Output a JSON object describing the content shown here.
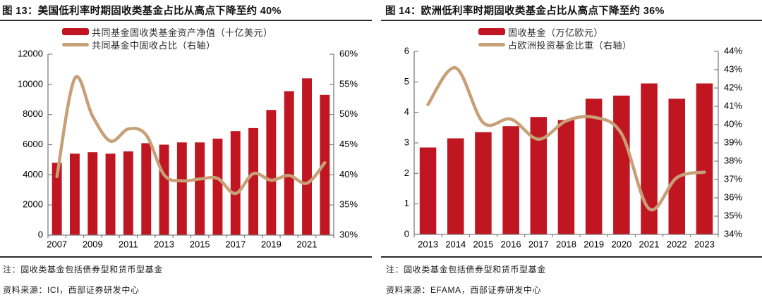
{
  "colors": {
    "bar_red": "#C01622",
    "line_tan": "#C7A077",
    "axis_gray": "#7F7F7F",
    "label_black": "#000000",
    "rule_dark": "#2B2B2B"
  },
  "panels": [
    {
      "id": "us",
      "title": "图 13：美国低利率时期固收类基金占比从高点下降至约 40%",
      "legend": [
        {
          "type": "bar",
          "label": "共同基金固收类基金资产净值（十亿美元）"
        },
        {
          "type": "line",
          "label": "共同基金中固收占比（右轴）"
        }
      ],
      "note": "注：固收类基金包括债券型和货币型基金",
      "source": "资料来源：ICI，西部证券研发中心",
      "chart_data": {
        "type": "bar+line-dual-axis",
        "title": "美国低利率时期固收类基金占比从高点下降至约 40%",
        "legend_position": "top",
        "grid": false,
        "categories": [
          "2007",
          "2008",
          "2009",
          "2010",
          "2011",
          "2012",
          "2013",
          "2014",
          "2015",
          "2016",
          "2017",
          "2018",
          "2019",
          "2020",
          "2021",
          "2022"
        ],
        "x_label_step": 2,
        "y_left": {
          "min": 0,
          "max": 12000,
          "labels": [
            "0",
            "2000",
            "4000",
            "6000",
            "8000",
            "10000",
            "12000"
          ]
        },
        "y_right": {
          "min": 30,
          "max": 60,
          "labels": [
            "30%",
            "35%",
            "40%",
            "45%",
            "50%",
            "55%",
            "60%"
          ]
        },
        "series": [
          {
            "name": "共同基金固收类基金资产净值（十亿美元）",
            "type": "bar",
            "axis": "left",
            "values": [
              4800,
              5400,
              5500,
              5400,
              5550,
              6100,
              6000,
              6150,
              6150,
              6400,
              6900,
              7100,
              8300,
              9550,
              10400,
              9300
            ]
          },
          {
            "name": "共同基金中固收占比（右轴）",
            "type": "line",
            "axis": "right",
            "values": [
              39.7,
              56.0,
              49.7,
              45.6,
              47.6,
              46.6,
              40.0,
              39.0,
              39.3,
              39.4,
              36.9,
              40.2,
              39.1,
              39.9,
              38.6,
              42.0
            ]
          }
        ]
      }
    },
    {
      "id": "eu",
      "title": "图 14：欧洲低利率时期固收类基金占比从高点下降至约 36%",
      "legend": [
        {
          "type": "bar",
          "label": "固收基金（万亿欧元）"
        },
        {
          "type": "line",
          "label": "占欧洲投资基金比重（右轴）"
        }
      ],
      "note": "注：固收类基金包括债券型和货币型基金",
      "source": "资料来源：EFAMA，西部证券研发中心",
      "chart_data": {
        "type": "bar+line-dual-axis",
        "title": "欧洲低利率时期固收类基金占比从高点下降至约 36%",
        "legend_position": "top",
        "grid": false,
        "categories": [
          "2013",
          "2014",
          "2015",
          "2016",
          "2017",
          "2018",
          "2019",
          "2020",
          "2021",
          "2022",
          "2023"
        ],
        "x_label_step": 1,
        "y_left": {
          "min": 0,
          "max": 6,
          "labels": [
            "0",
            "1",
            "2",
            "3",
            "4",
            "5",
            "6"
          ]
        },
        "y_right": {
          "min": 34,
          "max": 44,
          "labels": [
            "34%",
            "35%",
            "36%",
            "37%",
            "38%",
            "39%",
            "40%",
            "41%",
            "42%",
            "43%",
            "44%"
          ]
        },
        "series": [
          {
            "name": "固收基金（万亿欧元）",
            "type": "bar",
            "axis": "left",
            "values": [
              2.85,
              3.15,
              3.35,
              3.55,
              3.85,
              3.75,
              4.45,
              4.55,
              4.95,
              4.45,
              4.95
            ]
          },
          {
            "name": "占欧洲投资基金比重（右轴）",
            "type": "line",
            "axis": "right",
            "values": [
              41.1,
              43.1,
              40.1,
              40.3,
              39.2,
              40.2,
              40.4,
              39.5,
              35.4,
              37.1,
              37.4
            ]
          }
        ]
      }
    }
  ]
}
